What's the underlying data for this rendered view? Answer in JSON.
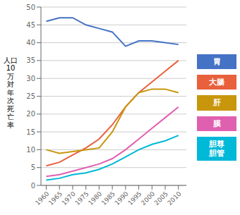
{
  "chart_data": {
    "type": "line",
    "y_label": "人口\n10\n万\n対\n年\n次\n死\n亡\n率",
    "x": [
      1960,
      1965,
      1970,
      1975,
      1980,
      1985,
      1990,
      1995,
      2000,
      2005,
      2010
    ],
    "series": [
      {
        "name": "胃",
        "color": "#4472c4",
        "values": [
          46,
          47,
          47,
          45,
          44,
          43,
          39,
          40.5,
          40.5,
          40,
          39.5
        ]
      },
      {
        "name": "大腸",
        "color": "#e8603c",
        "values": [
          5.5,
          6.5,
          8.5,
          10.5,
          13,
          17,
          22,
          26,
          29,
          32,
          35
        ]
      },
      {
        "name": "肝",
        "color": "#c8960c",
        "values": [
          10,
          9,
          9.5,
          10,
          10.5,
          15,
          22,
          26,
          27,
          27,
          26
        ]
      },
      {
        "name": "膜",
        "color": "#e060b0",
        "values": [
          2.5,
          3,
          4,
          5,
          6,
          7.5,
          10,
          13,
          16,
          19,
          22
        ]
      },
      {
        "name": "胆尊\n胆管",
        "color": "#00b8d8",
        "values": [
          1.5,
          2,
          3,
          3.5,
          4.5,
          6,
          8,
          10,
          11.5,
          12.5,
          14
        ]
      }
    ],
    "xlim": [
      1958,
      2013
    ],
    "xticks": [
      1960,
      1965,
      1970,
      1975,
      1980,
      1985,
      1990,
      1995,
      2000,
      2005,
      2010
    ],
    "ylim": [
      0,
      50
    ],
    "yticks": [
      0,
      5,
      10,
      15,
      20,
      25,
      30,
      35,
      40,
      45,
      50
    ],
    "grid": true,
    "legend": "right"
  }
}
